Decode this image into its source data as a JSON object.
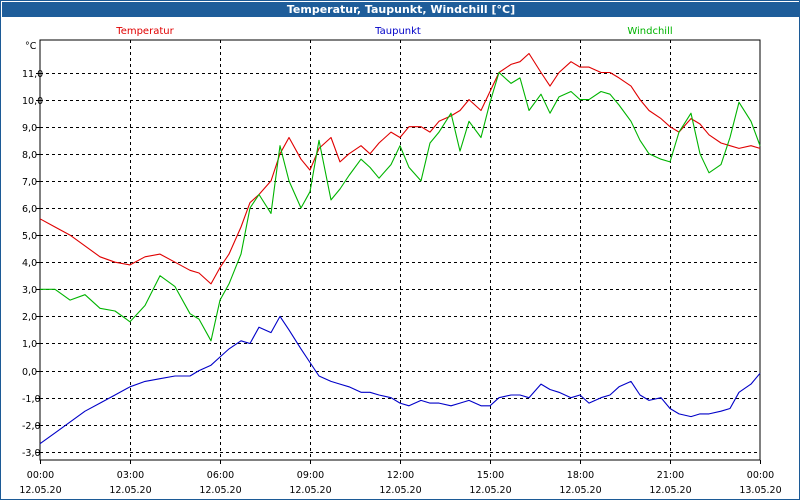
{
  "chart_data": {
    "type": "line",
    "title": "Temperatur, Taupunkt, Windchill [°C]",
    "ylabel": "°C",
    "xlabel": "",
    "ylim": [
      -3.3,
      12.2
    ],
    "xlim": [
      0,
      24
    ],
    "grid": true,
    "legend_position": "top",
    "y_ticks": [
      "-3,0",
      "-2,0",
      "-1,0",
      "0,0",
      "1,0",
      "2,0",
      "3,0",
      "4,0",
      "5,0",
      "6,0",
      "7,0",
      "8,0",
      "9,0",
      "10,0",
      "11,0"
    ],
    "x_ticks": [
      {
        "time": "00:00",
        "date": "12.05.20"
      },
      {
        "time": "03:00",
        "date": "12.05.20"
      },
      {
        "time": "06:00",
        "date": "12.05.20"
      },
      {
        "time": "09:00",
        "date": "12.05.20"
      },
      {
        "time": "12:00",
        "date": "12.05.20"
      },
      {
        "time": "15:00",
        "date": "12.05.20"
      },
      {
        "time": "18:00",
        "date": "12.05.20"
      },
      {
        "time": "21:00",
        "date": "12.05.20"
      },
      {
        "time": "00:00",
        "date": "13.05.20"
      }
    ],
    "series": [
      {
        "name": "Temperatur",
        "color": "#e00000",
        "x": [
          0,
          0.5,
          1,
          1.5,
          2,
          2.5,
          3,
          3.5,
          4,
          4.5,
          5,
          5.3,
          5.7,
          6,
          6.3,
          6.7,
          7,
          7.3,
          7.7,
          8,
          8.3,
          8.7,
          9,
          9.3,
          9.7,
          10,
          10.3,
          10.7,
          11,
          11.3,
          11.7,
          12,
          12.3,
          12.7,
          13,
          13.3,
          13.7,
          14,
          14.3,
          14.7,
          15,
          15.3,
          15.7,
          16,
          16.3,
          16.7,
          17,
          17.3,
          17.7,
          18,
          18.3,
          18.7,
          19,
          19.3,
          19.7,
          20,
          20.3,
          20.7,
          21,
          21.3,
          21.7,
          22,
          22.3,
          22.7,
          23,
          23.3,
          23.7,
          24
        ],
        "values": [
          5.6,
          5.3,
          5.0,
          4.6,
          4.2,
          4.0,
          3.9,
          4.2,
          4.3,
          4.0,
          3.7,
          3.6,
          3.2,
          3.8,
          4.3,
          5.3,
          6.2,
          6.5,
          7.0,
          8.0,
          8.6,
          7.8,
          7.4,
          8.2,
          8.6,
          7.7,
          8.0,
          8.3,
          8.0,
          8.4,
          8.8,
          8.6,
          9.0,
          9.0,
          8.8,
          9.2,
          9.4,
          9.6,
          10.0,
          9.6,
          10.3,
          11.0,
          11.3,
          11.4,
          11.7,
          11.0,
          10.5,
          11.0,
          11.4,
          11.2,
          11.2,
          11.0,
          11.0,
          10.8,
          10.5,
          10.0,
          9.6,
          9.3,
          9.0,
          8.8,
          9.3,
          9.1,
          8.7,
          8.4,
          8.3,
          8.2,
          8.3,
          8.2
        ]
      },
      {
        "name": "Taupunkt",
        "color": "#0000c8",
        "x": [
          0,
          0.5,
          1,
          1.5,
          2,
          2.5,
          3,
          3.5,
          4,
          4.5,
          5,
          5.3,
          5.7,
          6,
          6.3,
          6.7,
          7,
          7.3,
          7.7,
          8,
          8.3,
          8.7,
          9,
          9.3,
          9.7,
          10,
          10.3,
          10.7,
          11,
          11.3,
          11.7,
          12,
          12.3,
          12.7,
          13,
          13.3,
          13.7,
          14,
          14.3,
          14.7,
          15,
          15.3,
          15.7,
          16,
          16.3,
          16.7,
          17,
          17.3,
          17.7,
          18,
          18.3,
          18.7,
          19,
          19.3,
          19.7,
          20,
          20.3,
          20.7,
          21,
          21.3,
          21.7,
          22,
          22.3,
          22.7,
          23,
          23.3,
          23.7,
          24
        ],
        "values": [
          -2.7,
          -2.3,
          -1.9,
          -1.5,
          -1.2,
          -0.9,
          -0.6,
          -0.4,
          -0.3,
          -0.2,
          -0.2,
          0.0,
          0.2,
          0.5,
          0.8,
          1.1,
          1.0,
          1.6,
          1.4,
          2.0,
          1.5,
          0.8,
          0.3,
          -0.2,
          -0.4,
          -0.5,
          -0.6,
          -0.8,
          -0.8,
          -0.9,
          -1.0,
          -1.2,
          -1.3,
          -1.1,
          -1.2,
          -1.2,
          -1.3,
          -1.2,
          -1.1,
          -1.3,
          -1.3,
          -1.0,
          -0.9,
          -0.9,
          -1.0,
          -0.5,
          -0.7,
          -0.8,
          -1.0,
          -0.9,
          -1.2,
          -1.0,
          -0.9,
          -0.6,
          -0.4,
          -0.9,
          -1.1,
          -1.0,
          -1.4,
          -1.6,
          -1.7,
          -1.6,
          -1.6,
          -1.5,
          -1.4,
          -0.8,
          -0.5,
          -0.1
        ]
      },
      {
        "name": "Windchill",
        "color": "#00b400",
        "x": [
          0,
          0.5,
          1,
          1.5,
          2,
          2.5,
          3,
          3.5,
          4,
          4.5,
          5,
          5.3,
          5.7,
          6,
          6.3,
          6.7,
          7,
          7.3,
          7.7,
          8,
          8.3,
          8.7,
          9,
          9.3,
          9.7,
          10,
          10.3,
          10.7,
          11,
          11.3,
          11.7,
          12,
          12.3,
          12.7,
          13,
          13.3,
          13.7,
          14,
          14.3,
          14.7,
          15,
          15.3,
          15.7,
          16,
          16.3,
          16.7,
          17,
          17.3,
          17.7,
          18,
          18.3,
          18.7,
          19,
          19.3,
          19.7,
          20,
          20.3,
          20.7,
          21,
          21.3,
          21.7,
          22,
          22.3,
          22.7,
          23,
          23.3,
          23.7,
          24
        ],
        "values": [
          3.0,
          3.0,
          2.6,
          2.8,
          2.3,
          2.2,
          1.8,
          2.4,
          3.5,
          3.1,
          2.1,
          1.9,
          1.1,
          2.6,
          3.2,
          4.3,
          6.0,
          6.5,
          5.8,
          8.3,
          7.0,
          6.0,
          6.6,
          8.5,
          6.3,
          6.7,
          7.2,
          7.8,
          7.5,
          7.1,
          7.6,
          8.3,
          7.5,
          7.0,
          8.4,
          8.8,
          9.5,
          8.1,
          9.2,
          8.6,
          9.9,
          11.0,
          10.6,
          10.8,
          9.6,
          10.2,
          9.5,
          10.1,
          10.3,
          10.0,
          10.0,
          10.3,
          10.2,
          9.8,
          9.2,
          8.5,
          8.0,
          7.8,
          7.7,
          8.8,
          9.5,
          8.0,
          7.3,
          7.6,
          8.6,
          9.9,
          9.2,
          8.3
        ]
      }
    ]
  }
}
